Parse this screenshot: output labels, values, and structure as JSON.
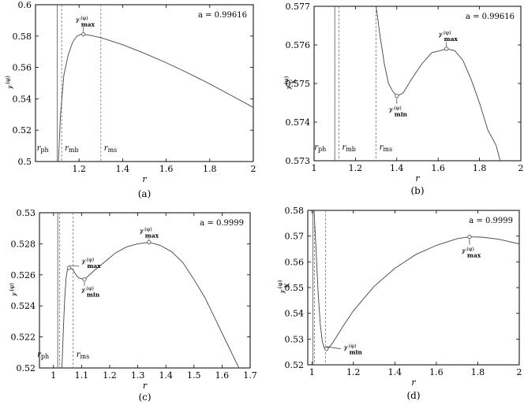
{
  "chart_data": [
    {
      "type": "line",
      "caption": "(a)",
      "xlabel": "r",
      "ylabel": "𝒱^(φ)",
      "parameter": "a = 0.99616",
      "xlim": [
        1.0,
        2.0
      ],
      "ylim": [
        0.5,
        0.6
      ],
      "xticks": [
        1.2,
        1.4,
        1.6,
        1.8,
        2
      ],
      "xtick_labels": [
        "1.2",
        "1.4",
        "1.6",
        "1.8",
        "2"
      ],
      "yticks": [
        0.5,
        0.52,
        0.54,
        0.56,
        0.58,
        0.6
      ],
      "ytick_labels": [
        "0.5",
        "0.52",
        "0.54",
        "0.56",
        "0.58",
        "0.6"
      ],
      "vlines": [
        {
          "x": 1.1,
          "style": "solid",
          "label": "r_ph"
        },
        {
          "x": 1.12,
          "style": "dashed",
          "label": "r_mb"
        },
        {
          "x": 1.3,
          "style": "dashed",
          "label": "r_ms"
        }
      ],
      "series": [
        {
          "x": [
            1.105,
            1.115,
            1.13,
            1.15,
            1.17,
            1.19,
            1.21,
            1.22,
            1.25,
            1.3,
            1.4,
            1.5,
            1.6,
            1.7,
            1.8,
            1.9,
            2.0
          ],
          "y": [
            0.5,
            0.53,
            0.555,
            0.568,
            0.576,
            0.58,
            0.5812,
            0.5812,
            0.5805,
            0.579,
            0.5745,
            0.569,
            0.563,
            0.5565,
            0.5495,
            0.542,
            0.5345
          ]
        }
      ],
      "annotations": [
        {
          "text": "𝒱max^(φ)",
          "x": 1.22,
          "y": 0.5812,
          "kind": "max"
        }
      ]
    },
    {
      "type": "line",
      "caption": "(b)",
      "xlabel": "r",
      "ylabel": "𝒱_K^(φ)",
      "parameter": "a = 0.99616",
      "xlim": [
        1.0,
        2.0
      ],
      "ylim": [
        0.573,
        0.577
      ],
      "xticks": [
        1,
        1.2,
        1.4,
        1.6,
        1.8,
        2
      ],
      "xtick_labels": [
        "1",
        "1.2",
        "1.4",
        "1.6",
        "1.8",
        "2"
      ],
      "yticks": [
        0.573,
        0.574,
        0.575,
        0.576,
        0.577
      ],
      "ytick_labels": [
        "0.573",
        "0.574",
        "0.575",
        "0.576",
        "0.577"
      ],
      "vlines": [
        {
          "x": 1.1,
          "style": "solid",
          "label": "r_ph"
        },
        {
          "x": 1.12,
          "style": "dashed",
          "label": "r_mb"
        },
        {
          "x": 1.3,
          "style": "dashed",
          "label": "r_ms"
        }
      ],
      "series": [
        {
          "x": [
            1.3,
            1.32,
            1.34,
            1.36,
            1.38,
            1.4,
            1.43,
            1.47,
            1.52,
            1.57,
            1.61,
            1.64,
            1.68,
            1.72,
            1.76,
            1.8,
            1.84,
            1.88,
            1.9
          ],
          "y": [
            0.577,
            0.5762,
            0.5755,
            0.575,
            0.5748,
            0.57468,
            0.57475,
            0.5751,
            0.5755,
            0.5758,
            0.57585,
            0.5759,
            0.57585,
            0.5756,
            0.5751,
            0.5745,
            0.5738,
            0.5734,
            0.573
          ]
        }
      ],
      "annotations": [
        {
          "text": "𝒱max^(φ)",
          "x": 1.64,
          "y": 0.5759,
          "kind": "max"
        },
        {
          "text": "𝒱min^(φ)",
          "x": 1.4,
          "y": 0.57468,
          "kind": "min"
        }
      ]
    },
    {
      "type": "line",
      "caption": "(c)",
      "xlabel": "r",
      "ylabel": "𝒱^(φ)",
      "parameter": "a = 0.9999",
      "xlim": [
        0.95,
        1.7
      ],
      "ylim": [
        0.52,
        0.53
      ],
      "xticks": [
        1,
        1.1,
        1.2,
        1.3,
        1.4,
        1.5,
        1.6,
        1.7
      ],
      "xtick_labels": [
        "1",
        "1.1",
        "1.2",
        "1.3",
        "1.4",
        "1.5",
        "1.6",
        "1.7"
      ],
      "yticks": [
        0.52,
        0.522,
        0.524,
        0.526,
        0.528,
        0.53
      ],
      "ytick_labels": [
        "0.52",
        "0.522",
        "0.524",
        "0.526",
        "0.528",
        "0.53"
      ],
      "vlines": [
        {
          "x": 1.015,
          "style": "solid",
          "label": "r_ph"
        },
        {
          "x": 1.022,
          "style": "dashed",
          "label": ""
        },
        {
          "x": 1.07,
          "style": "dashed",
          "label": "r_ms"
        }
      ],
      "series": [
        {
          "x": [
            1.03,
            1.035,
            1.04,
            1.045,
            1.05,
            1.06,
            1.07,
            1.08,
            1.09,
            1.11,
            1.14,
            1.18,
            1.22,
            1.26,
            1.3,
            1.34,
            1.38,
            1.42,
            1.46,
            1.5,
            1.54,
            1.58,
            1.62,
            1.66,
            1.69
          ],
          "y": [
            0.52,
            0.5225,
            0.5245,
            0.5258,
            0.5264,
            0.52645,
            0.5263,
            0.526,
            0.5258,
            0.5257,
            0.5262,
            0.5268,
            0.5274,
            0.5278,
            0.528,
            0.5281,
            0.5279,
            0.5275,
            0.5268,
            0.5257,
            0.5245,
            0.523,
            0.5215,
            0.52,
            0.5187
          ]
        }
      ],
      "annotations": [
        {
          "text": "𝒱max^(φ)",
          "x": 1.055,
          "y": 0.52645,
          "kind": "max-local"
        },
        {
          "text": "𝒱min^(φ)",
          "x": 1.11,
          "y": 0.5257,
          "kind": "min"
        },
        {
          "text": "𝒱max^(φ)",
          "x": 1.34,
          "y": 0.5281,
          "kind": "max"
        }
      ]
    },
    {
      "type": "line",
      "caption": "(d)",
      "xlabel": "r",
      "ylabel": "𝒱_K^(φ)",
      "parameter": "a = 0.9999",
      "xlim": [
        0.98,
        2.0
      ],
      "ylim": [
        0.52,
        0.58
      ],
      "xticks": [
        1,
        1.2,
        1.4,
        1.6,
        1.8,
        2
      ],
      "xtick_labels": [
        "1",
        "1.2",
        "1.4",
        "1.6",
        "1.8",
        "2"
      ],
      "yticks": [
        0.52,
        0.53,
        0.54,
        0.55,
        0.56,
        0.57,
        0.58
      ],
      "ytick_labels": [
        "0.52",
        "0.53",
        "0.54",
        "0.55",
        "0.56",
        "0.57",
        "0.58"
      ],
      "vlines": [
        {
          "x": 1.005,
          "style": "solid",
          "label": ""
        },
        {
          "x": 1.012,
          "style": "dashed",
          "label": ""
        },
        {
          "x": 1.065,
          "style": "dashed",
          "label": ""
        }
      ],
      "series": [
        {
          "x": [
            1.01,
            1.02,
            1.03,
            1.04,
            1.05,
            1.06,
            1.07,
            1.08,
            1.1,
            1.15,
            1.2,
            1.3,
            1.4,
            1.5,
            1.6,
            1.7,
            1.76,
            1.82,
            1.9,
            2.0
          ],
          "y": [
            0.58,
            0.565,
            0.548,
            0.536,
            0.529,
            0.5265,
            0.5262,
            0.5265,
            0.5285,
            0.535,
            0.541,
            0.5505,
            0.5575,
            0.5628,
            0.5664,
            0.569,
            0.5697,
            0.5696,
            0.5688,
            0.567
          ]
        }
      ],
      "annotations": [
        {
          "text": "𝒱max^(φ)",
          "x": 1.76,
          "y": 0.5697,
          "kind": "max"
        },
        {
          "text": "𝒱min^(φ)",
          "x": 1.07,
          "y": 0.5262,
          "kind": "min"
        }
      ]
    }
  ]
}
